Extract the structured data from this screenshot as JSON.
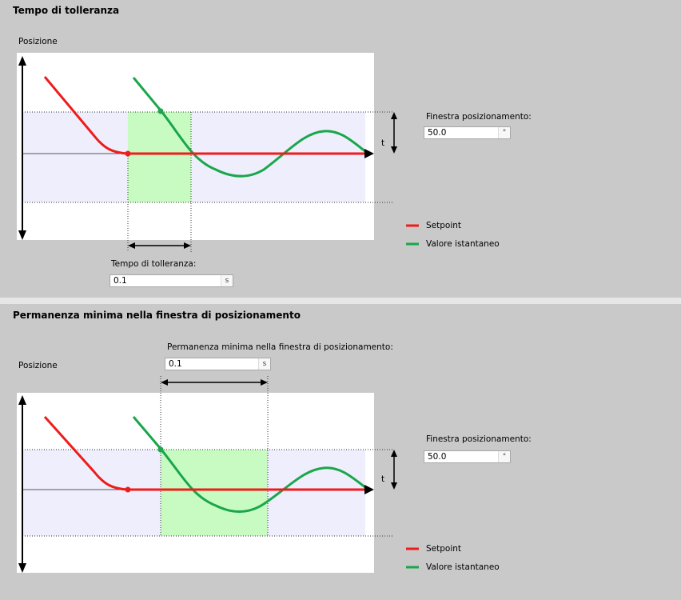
{
  "section1": {
    "title": "Tempo di tolleranza",
    "axis_label": "Posizione",
    "window_label": "Finestra posizionamento:",
    "window_value": "50.0",
    "window_unit": "°",
    "t_marker": "t",
    "time_label": "Tempo di tolleranza:",
    "time_value": "0.1",
    "time_unit": "s"
  },
  "section2": {
    "title": "Permanenza minima nella finestra di posizionamento",
    "axis_label": "Posizione",
    "window_label": "Finestra posizionamento:",
    "window_value": "50.0",
    "window_unit": "°",
    "t_marker": "t",
    "time_label": "Permanenza minima nella finestra di posizionamento:",
    "time_value": "0.1",
    "time_unit": "s"
  },
  "legend": {
    "setpoint": "Setpoint",
    "actual": "Valore istantaneo"
  },
  "colors": {
    "setpoint": "#ee1c1c",
    "actual": "#1aa64a",
    "window_fill": "#eeeefc",
    "time_fill": "#c8fbc2"
  }
}
